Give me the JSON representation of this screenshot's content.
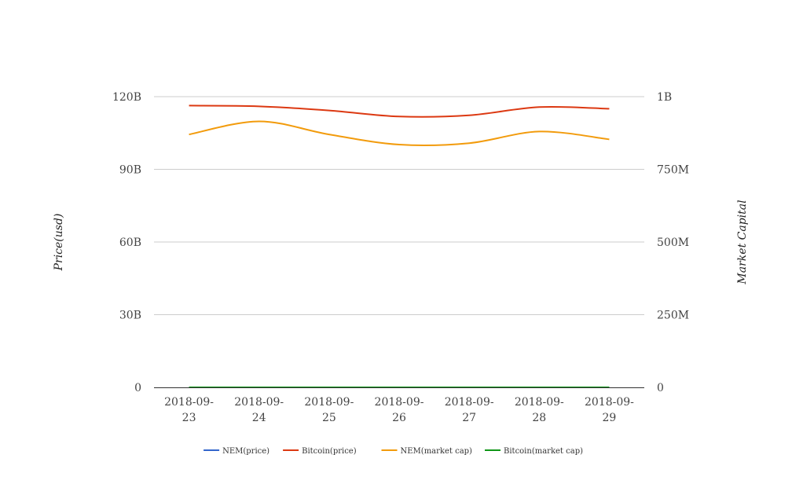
{
  "chart_data": {
    "type": "line",
    "title": "",
    "categories": [
      [
        "2018-09-",
        "23"
      ],
      [
        "2018-09-",
        "24"
      ],
      [
        "2018-09-",
        "25"
      ],
      [
        "2018-09-",
        "26"
      ],
      [
        "2018-09-",
        "27"
      ],
      [
        "2018-09-",
        "28"
      ],
      [
        "2018-09-",
        "29"
      ]
    ],
    "y_left": {
      "label": "Price(usd)",
      "ylim": [
        0,
        120000000000
      ],
      "ticks": [
        0,
        30000000000,
        60000000000,
        90000000000,
        120000000000
      ],
      "tick_labels": [
        "0",
        "30B",
        "60B",
        "90B",
        "120B"
      ]
    },
    "y_right": {
      "label": "Market Capital",
      "ylim": [
        0,
        1000000000
      ],
      "ticks": [
        0,
        250000000,
        500000000,
        750000000,
        1000000000
      ],
      "tick_labels": [
        "0",
        "250M",
        "500M",
        "750M",
        "1B"
      ]
    },
    "grid": true,
    "legend_position": "bottom",
    "series": [
      {
        "name": "NEM(price)",
        "axis": "left",
        "color": "#3366cc",
        "values": [
          0.11,
          0.12,
          0.1,
          0.1,
          0.1,
          0.1,
          0.09
        ]
      },
      {
        "name": "Bitcoin(price)",
        "axis": "left",
        "color": "#dc3912",
        "values": [
          116300000000,
          116000000000,
          114300000000,
          111800000000,
          112300000000,
          115700000000,
          115000000000
        ]
      },
      {
        "name": "NEM(market cap)",
        "axis": "right",
        "color": "#f29b0c",
        "values": [
          870000000,
          915000000,
          870000000,
          835000000,
          840000000,
          880000000,
          853000000
        ]
      },
      {
        "name": "Bitcoin(market cap)",
        "axis": "right",
        "color": "#109618",
        "values": [
          110000,
          110000,
          110000,
          110000,
          110000,
          110000,
          110000
        ]
      }
    ]
  }
}
